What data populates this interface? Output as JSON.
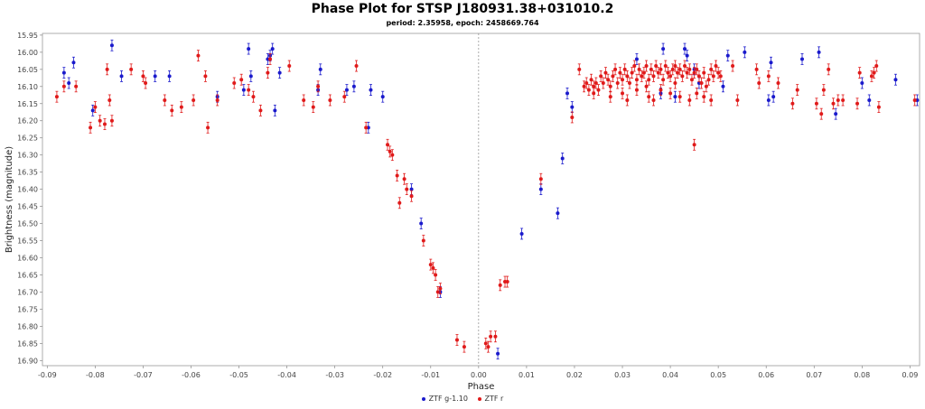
{
  "title": "Phase Plot for STSP J180931.38+031010.2",
  "subtitle": "period: 2.35958, epoch: 2458669.764",
  "chart_data": {
    "type": "scatter",
    "xlabel": "Phase",
    "ylabel": "Brightness (magnitude)",
    "xlim": [
      -0.091,
      0.092
    ],
    "ylim": [
      16.915,
      15.945
    ],
    "y_inverted": true,
    "x_ticks": [
      -0.09,
      -0.08,
      -0.07,
      -0.06,
      -0.05,
      -0.04,
      -0.03,
      -0.02,
      -0.01,
      0.0,
      0.01,
      0.02,
      0.03,
      0.04,
      0.05,
      0.06,
      0.07,
      0.08,
      0.09
    ],
    "x_tick_labels": [
      "-0.09",
      "-0.08",
      "-0.07",
      "-0.06",
      "-0.05",
      "-0.04",
      "-0.03",
      "-0.02",
      "-0.01",
      "0.00",
      "0.01",
      "0.02",
      "0.03",
      "0.04",
      "0.05",
      "0.06",
      "0.07",
      "0.08",
      "0.09"
    ],
    "y_ticks": [
      15.95,
      16.0,
      16.05,
      16.1,
      16.15,
      16.2,
      16.25,
      16.3,
      16.35,
      16.4,
      16.45,
      16.5,
      16.55,
      16.6,
      16.65,
      16.7,
      16.75,
      16.8,
      16.85,
      16.9
    ],
    "y_tick_labels": [
      "15.95",
      "16.00",
      "16.05",
      "16.10",
      "16.15",
      "16.20",
      "16.25",
      "16.30",
      "16.35",
      "16.40",
      "16.45",
      "16.50",
      "16.55",
      "16.60",
      "16.65",
      "16.70",
      "16.75",
      "16.80",
      "16.85",
      "16.90"
    ],
    "grid": false,
    "legend_position": "bottom-center",
    "series": [
      {
        "name": "ZTF g-1.10",
        "color": "#1a1acc",
        "points": [
          [
            -0.0865,
            16.06
          ],
          [
            -0.0855,
            16.09
          ],
          [
            -0.0845,
            16.03
          ],
          [
            -0.0805,
            16.17
          ],
          [
            -0.0765,
            15.98
          ],
          [
            -0.0745,
            16.07
          ],
          [
            -0.0675,
            16.07
          ],
          [
            -0.0645,
            16.07
          ],
          [
            -0.0545,
            16.13
          ],
          [
            -0.049,
            16.11
          ],
          [
            -0.048,
            15.99
          ],
          [
            -0.0475,
            16.07
          ],
          [
            -0.044,
            16.02
          ],
          [
            -0.0435,
            16.01
          ],
          [
            -0.043,
            15.99
          ],
          [
            -0.0425,
            16.17
          ],
          [
            -0.0415,
            16.06
          ],
          [
            -0.0335,
            16.11
          ],
          [
            -0.033,
            16.05
          ],
          [
            -0.0275,
            16.11
          ],
          [
            -0.026,
            16.1
          ],
          [
            -0.023,
            16.22
          ],
          [
            -0.0225,
            16.11
          ],
          [
            -0.02,
            16.13
          ],
          [
            -0.014,
            16.4
          ],
          [
            -0.012,
            16.5
          ],
          [
            -0.008,
            16.7
          ],
          [
            0.004,
            16.88
          ],
          [
            0.009,
            16.53
          ],
          [
            0.013,
            16.4
          ],
          [
            0.0165,
            16.47
          ],
          [
            0.0175,
            16.31
          ],
          [
            0.0185,
            16.12
          ],
          [
            0.0195,
            16.16
          ],
          [
            0.033,
            16.02
          ],
          [
            0.038,
            16.12
          ],
          [
            0.0385,
            15.99
          ],
          [
            0.041,
            16.13
          ],
          [
            0.043,
            15.99
          ],
          [
            0.0435,
            16.01
          ],
          [
            0.045,
            16.05
          ],
          [
            0.046,
            16.09
          ],
          [
            0.051,
            16.1
          ],
          [
            0.052,
            16.01
          ],
          [
            0.0555,
            16.0
          ],
          [
            0.0605,
            16.14
          ],
          [
            0.061,
            16.03
          ],
          [
            0.0615,
            16.13
          ],
          [
            0.0675,
            16.02
          ],
          [
            0.071,
            16.0
          ],
          [
            0.0745,
            16.18
          ],
          [
            0.08,
            16.09
          ],
          [
            0.0815,
            16.14
          ],
          [
            0.087,
            16.08
          ],
          [
            0.0915,
            16.14
          ]
        ]
      },
      {
        "name": "ZTF r",
        "color": "#e01a1a",
        "points": [
          [
            -0.088,
            16.13
          ],
          [
            -0.0865,
            16.1
          ],
          [
            -0.084,
            16.1
          ],
          [
            -0.081,
            16.22
          ],
          [
            -0.08,
            16.16
          ],
          [
            -0.079,
            16.2
          ],
          [
            -0.078,
            16.21
          ],
          [
            -0.0775,
            16.05
          ],
          [
            -0.077,
            16.14
          ],
          [
            -0.0765,
            16.2
          ],
          [
            -0.0725,
            16.05
          ],
          [
            -0.07,
            16.07
          ],
          [
            -0.0695,
            16.09
          ],
          [
            -0.0655,
            16.14
          ],
          [
            -0.064,
            16.17
          ],
          [
            -0.062,
            16.16
          ],
          [
            -0.0595,
            16.14
          ],
          [
            -0.0585,
            16.01
          ],
          [
            -0.057,
            16.07
          ],
          [
            -0.0565,
            16.22
          ],
          [
            -0.0545,
            16.14
          ],
          [
            -0.051,
            16.09
          ],
          [
            -0.0495,
            16.08
          ],
          [
            -0.048,
            16.11
          ],
          [
            -0.047,
            16.13
          ],
          [
            -0.0455,
            16.17
          ],
          [
            -0.044,
            16.06
          ],
          [
            -0.0435,
            16.02
          ],
          [
            -0.0395,
            16.04
          ],
          [
            -0.0365,
            16.14
          ],
          [
            -0.0345,
            16.16
          ],
          [
            -0.0335,
            16.1
          ],
          [
            -0.031,
            16.14
          ],
          [
            -0.028,
            16.13
          ],
          [
            -0.0255,
            16.04
          ],
          [
            -0.0235,
            16.22
          ],
          [
            -0.019,
            16.27
          ],
          [
            -0.0185,
            16.29
          ],
          [
            -0.018,
            16.3
          ],
          [
            -0.017,
            16.36
          ],
          [
            -0.0165,
            16.44
          ],
          [
            -0.0155,
            16.37
          ],
          [
            -0.015,
            16.4
          ],
          [
            -0.014,
            16.42
          ],
          [
            -0.0115,
            16.55
          ],
          [
            -0.01,
            16.62
          ],
          [
            -0.0095,
            16.63
          ],
          [
            -0.009,
            16.65
          ],
          [
            -0.0085,
            16.7
          ],
          [
            -0.008,
            16.69
          ],
          [
            -0.0045,
            16.84
          ],
          [
            -0.003,
            16.86
          ],
          [
            0.0015,
            16.85
          ],
          [
            0.002,
            16.86
          ],
          [
            0.0025,
            16.83
          ],
          [
            0.0035,
            16.83
          ],
          [
            0.0045,
            16.68
          ],
          [
            0.0055,
            16.67
          ],
          [
            0.006,
            16.67
          ],
          [
            0.013,
            16.37
          ],
          [
            0.0195,
            16.19
          ],
          [
            0.021,
            16.05
          ],
          [
            0.022,
            16.1
          ],
          [
            0.0225,
            16.09
          ],
          [
            0.023,
            16.11
          ],
          [
            0.0235,
            16.08
          ],
          [
            0.024,
            16.1
          ],
          [
            0.0245,
            16.09
          ],
          [
            0.025,
            16.11
          ],
          [
            0.0255,
            16.07
          ],
          [
            0.026,
            16.09
          ],
          [
            0.0265,
            16.06
          ],
          [
            0.027,
            16.08
          ],
          [
            0.0275,
            16.1
          ],
          [
            0.028,
            16.07
          ],
          [
            0.0285,
            16.05
          ],
          [
            0.029,
            16.09
          ],
          [
            0.0295,
            16.06
          ],
          [
            0.03,
            16.08
          ],
          [
            0.0305,
            16.05
          ],
          [
            0.031,
            16.07
          ],
          [
            0.0315,
            16.09
          ],
          [
            0.032,
            16.06
          ],
          [
            0.0325,
            16.04
          ],
          [
            0.033,
            16.08
          ],
          [
            0.0335,
            16.05
          ],
          [
            0.034,
            16.07
          ],
          [
            0.0345,
            16.06
          ],
          [
            0.035,
            16.04
          ],
          [
            0.0355,
            16.08
          ],
          [
            0.036,
            16.05
          ],
          [
            0.0365,
            16.07
          ],
          [
            0.037,
            16.04
          ],
          [
            0.0375,
            16.06
          ],
          [
            0.038,
            16.05
          ],
          [
            0.0385,
            16.08
          ],
          [
            0.039,
            16.04
          ],
          [
            0.0395,
            16.06
          ],
          [
            0.04,
            16.07
          ],
          [
            0.0405,
            16.05
          ],
          [
            0.041,
            16.04
          ],
          [
            0.0415,
            16.06
          ],
          [
            0.042,
            16.05
          ],
          [
            0.0425,
            16.07
          ],
          [
            0.043,
            16.04
          ],
          [
            0.0435,
            16.06
          ],
          [
            0.044,
            16.05
          ],
          [
            0.0445,
            16.08
          ],
          [
            0.045,
            16.06
          ],
          [
            0.0455,
            16.05
          ],
          [
            0.046,
            16.07
          ],
          [
            0.0465,
            16.09
          ],
          [
            0.047,
            16.06
          ],
          [
            0.0475,
            16.1
          ],
          [
            0.048,
            16.08
          ],
          [
            0.0485,
            16.05
          ],
          [
            0.049,
            16.07
          ],
          [
            0.0495,
            16.04
          ],
          [
            0.05,
            16.06
          ],
          [
            0.024,
            16.12
          ],
          [
            0.0275,
            16.13
          ],
          [
            0.03,
            16.12
          ],
          [
            0.031,
            16.14
          ],
          [
            0.033,
            16.11
          ],
          [
            0.0355,
            16.13
          ],
          [
            0.0365,
            16.14
          ],
          [
            0.04,
            16.12
          ],
          [
            0.042,
            16.13
          ],
          [
            0.044,
            16.14
          ],
          [
            0.0455,
            16.12
          ],
          [
            0.047,
            16.13
          ],
          [
            0.0485,
            16.14
          ],
          [
            0.035,
            16.1
          ],
          [
            0.038,
            16.11
          ],
          [
            0.041,
            16.09
          ],
          [
            0.045,
            16.27
          ],
          [
            0.0505,
            16.07
          ],
          [
            0.053,
            16.04
          ],
          [
            0.054,
            16.14
          ],
          [
            0.058,
            16.05
          ],
          [
            0.0585,
            16.09
          ],
          [
            0.0605,
            16.07
          ],
          [
            0.0625,
            16.09
          ],
          [
            0.0655,
            16.15
          ],
          [
            0.0665,
            16.11
          ],
          [
            0.0705,
            16.15
          ],
          [
            0.0715,
            16.18
          ],
          [
            0.072,
            16.11
          ],
          [
            0.073,
            16.05
          ],
          [
            0.074,
            16.15
          ],
          [
            0.075,
            16.14
          ],
          [
            0.076,
            16.14
          ],
          [
            0.079,
            16.15
          ],
          [
            0.0795,
            16.06
          ],
          [
            0.082,
            16.07
          ],
          [
            0.0825,
            16.06
          ],
          [
            0.083,
            16.04
          ],
          [
            0.0835,
            16.16
          ],
          [
            0.091,
            16.14
          ]
        ]
      }
    ]
  }
}
